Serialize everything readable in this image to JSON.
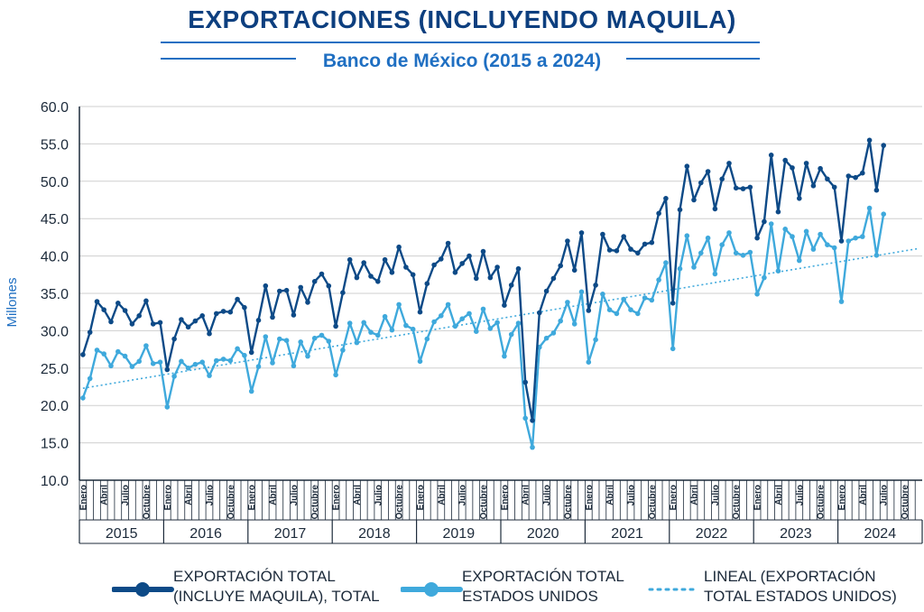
{
  "title": "EXPORTACIONES (INCLUYENDO MAQUILA)",
  "subtitle": "Banco de México (2015 a 2024)",
  "colors": {
    "total": "#0d4a87",
    "eeuu": "#3fa9dc",
    "trend": "#3fa9dc",
    "axis": "#1c2a3a",
    "grid": "#cfcfcf",
    "plot_bg": "#ffffff",
    "title": "#0d3f7f"
  },
  "chart_data": {
    "type": "line",
    "ylabel": "Millones",
    "ylim": [
      10.0,
      60.0
    ],
    "yticks": [
      "10.0",
      "15.0",
      "20.0",
      "25.0",
      "30.0",
      "35.0",
      "40.0",
      "45.0",
      "50.0",
      "55.0",
      "60.0"
    ],
    "month_labels": [
      "Enero",
      "Abril",
      "Julio",
      "Octubre"
    ],
    "years": [
      "2015",
      "2016",
      "2017",
      "2018",
      "2019",
      "2020",
      "2021",
      "2022",
      "2023",
      "2024"
    ],
    "series": [
      {
        "name": "EXPORTACIÓN TOTAL (INCLUYE MAQUILA), TOTAL",
        "style": "solid-marker",
        "values": [
          26.8,
          29.8,
          33.9,
          32.8,
          31.2,
          33.7,
          32.7,
          30.9,
          32.0,
          34.0,
          30.9,
          31.1,
          24.8,
          28.9,
          31.5,
          30.5,
          31.3,
          32.0,
          29.6,
          32.3,
          32.6,
          32.5,
          34.2,
          33.1,
          27.1,
          31.4,
          36.0,
          31.8,
          35.3,
          35.4,
          32.1,
          35.8,
          33.8,
          36.6,
          37.6,
          36.0,
          30.6,
          35.1,
          39.5,
          37.1,
          39.1,
          37.3,
          36.6,
          39.5,
          37.8,
          41.2,
          38.5,
          37.5,
          32.5,
          36.3,
          38.8,
          39.6,
          41.7,
          37.8,
          39.0,
          40.0,
          37.0,
          40.6,
          37.1,
          38.5,
          33.4,
          36.1,
          38.3,
          23.1,
          18.0,
          32.4,
          35.3,
          37.0,
          38.7,
          42.0,
          38.1,
          43.1,
          32.7,
          36.1,
          42.9,
          40.8,
          40.7,
          42.6,
          40.9,
          40.4,
          41.6,
          41.8,
          45.7,
          47.7,
          33.7,
          46.2,
          52.0,
          47.5,
          49.8,
          51.3,
          46.3,
          50.3,
          52.4,
          49.1,
          49.0,
          49.2,
          42.4,
          44.6,
          53.5,
          45.9,
          52.8,
          51.8,
          47.7,
          52.4,
          49.4,
          51.7,
          50.3,
          49.2,
          42.0,
          50.7,
          50.5,
          51.1,
          55.5,
          48.8,
          54.8
        ]
      },
      {
        "name": "EXPORTACIÓN TOTAL ESTADOS UNIDOS",
        "style": "solid-marker",
        "values": [
          21.0,
          23.6,
          27.4,
          26.9,
          25.3,
          27.2,
          26.6,
          25.2,
          25.9,
          28.0,
          25.6,
          25.8,
          19.8,
          23.9,
          25.9,
          25.0,
          25.5,
          25.8,
          24.0,
          26.0,
          26.2,
          26.0,
          27.6,
          26.7,
          21.9,
          25.2,
          29.2,
          25.7,
          28.9,
          28.7,
          25.3,
          28.5,
          26.6,
          29.0,
          29.4,
          28.6,
          24.1,
          27.4,
          31.0,
          28.4,
          31.1,
          29.8,
          29.4,
          31.9,
          30.1,
          33.5,
          30.7,
          30.2,
          25.9,
          28.9,
          31.2,
          32.0,
          33.5,
          30.6,
          31.6,
          32.3,
          29.9,
          32.9,
          30.3,
          31.1,
          26.6,
          29.5,
          31.0,
          18.3,
          14.4,
          27.8,
          29.0,
          29.7,
          31.3,
          33.8,
          30.9,
          35.2,
          25.8,
          28.8,
          34.9,
          32.8,
          32.3,
          34.2,
          32.8,
          32.3,
          34.4,
          34.1,
          36.8,
          39.1,
          27.6,
          38.3,
          42.7,
          38.5,
          40.4,
          42.4,
          37.6,
          41.5,
          43.1,
          40.4,
          40.1,
          40.5,
          34.9,
          37.1,
          44.3,
          38.0,
          43.6,
          42.6,
          39.4,
          43.3,
          40.9,
          42.9,
          41.5,
          41.1,
          33.9,
          42.0,
          42.4,
          42.6,
          46.4,
          40.1,
          45.6
        ]
      },
      {
        "name": "LINEAL (EXPORTACIÓN TOTAL ESTADOS UNIDOS)",
        "style": "dotted-trend",
        "start": 22.3,
        "end": 41.0
      }
    ],
    "grid": true,
    "legend_position": "bottom"
  },
  "legend": [
    {
      "line1": "EXPORTACIÓN TOTAL",
      "line2": "(INCLUYE MAQUILA), TOTAL"
    },
    {
      "line1": "EXPORTACIÓN TOTAL",
      "line2": "ESTADOS UNIDOS"
    },
    {
      "line1": "LINEAL (EXPORTACIÓN",
      "line2": "TOTAL ESTADOS UNIDOS)"
    }
  ]
}
